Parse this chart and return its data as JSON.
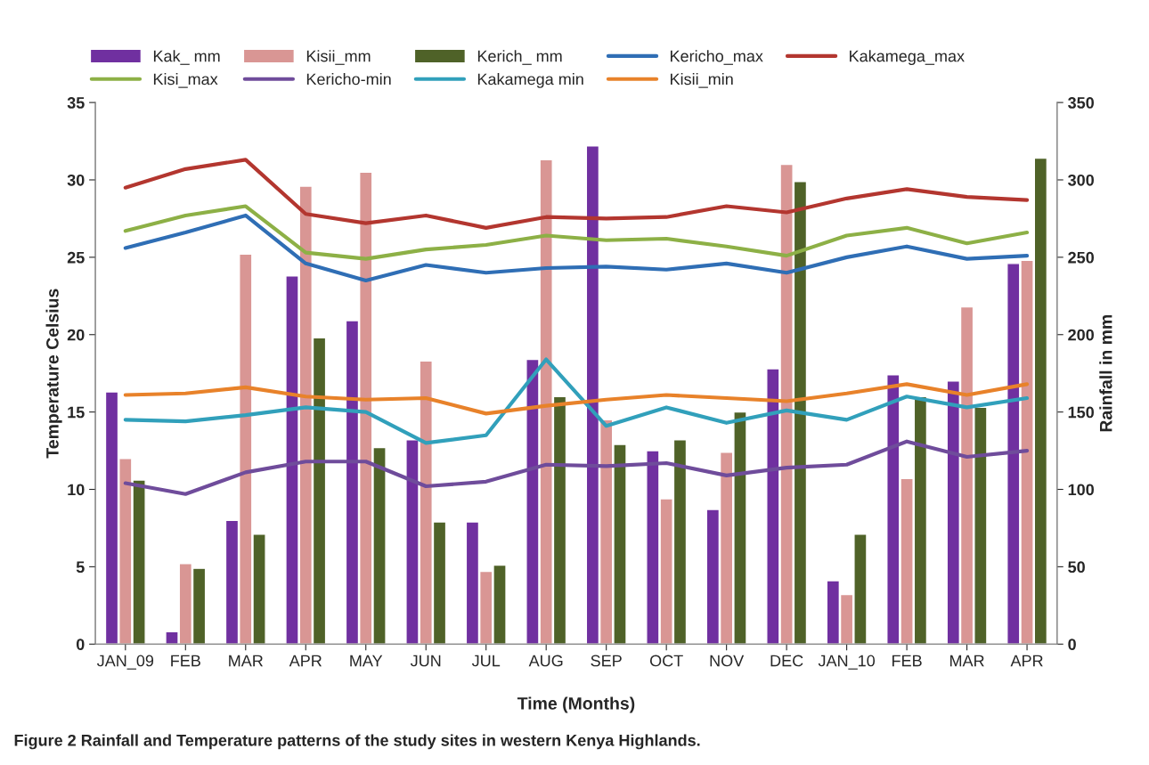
{
  "chart_data": {
    "type": "bar",
    "title": "Figure 2 Rainfall and Temperature patterns of the study sites in western Kenya Highlands.",
    "xlabel": "Time (Months)",
    "ylabel": "Temperature Celsius",
    "y2label": "Rainfall in mm",
    "categories": [
      "JAN_09",
      "FEB",
      "MAR",
      "APR",
      "MAY",
      "JUN",
      "JUL",
      "AUG",
      "SEP",
      "OCT",
      "NOV",
      "DEC",
      "JAN_10",
      "FEB",
      "MAR",
      "APR"
    ],
    "ylim": [
      0,
      35
    ],
    "yticks": [
      0,
      5,
      10,
      15,
      20,
      25,
      30,
      35
    ],
    "y2lim": [
      0,
      350
    ],
    "y2ticks": [
      0,
      50,
      100,
      150,
      200,
      250,
      300,
      350
    ],
    "grid": false,
    "legend": "top",
    "marker": "none",
    "line_style": "solid",
    "series": [
      {
        "name": "Kak_ mm",
        "axis": "y2",
        "color": "#7030a0",
        "values": [
          163,
          8,
          80,
          238,
          209,
          132,
          79,
          184,
          322,
          125,
          87,
          178,
          41,
          174,
          170,
          246
        ]
      },
      {
        "name": "Kisii_mm",
        "axis": "y2",
        "color": "#d99694",
        "values": [
          120,
          52,
          252,
          296,
          305,
          183,
          47,
          313,
          145,
          94,
          124,
          310,
          32,
          107,
          218,
          248
        ]
      },
      {
        "name": "Kerich_ mm",
        "axis": "y2",
        "color": "#4f6228",
        "values": [
          106,
          49,
          71,
          198,
          127,
          79,
          51,
          160,
          129,
          132,
          150,
          299,
          71,
          160,
          153,
          314
        ]
      },
      {
        "name": "Kericho_max",
        "type": "line",
        "color": "#2f6eb5",
        "values": [
          25.6,
          26.6,
          27.7,
          24.6,
          23.5,
          24.5,
          24.0,
          24.3,
          24.4,
          24.2,
          24.6,
          24.0,
          25.0,
          25.7,
          24.9,
          25.1
        ]
      },
      {
        "name": "Kakamega_max",
        "type": "line",
        "color": "#b3362f",
        "values": [
          29.5,
          30.7,
          31.3,
          27.8,
          27.2,
          27.7,
          26.9,
          27.6,
          27.5,
          27.6,
          28.3,
          27.9,
          28.8,
          29.4,
          28.9,
          28.7
        ]
      },
      {
        "name": "Kisi_max",
        "type": "line",
        "color": "#8db046",
        "values": [
          26.7,
          27.7,
          28.3,
          25.3,
          24.9,
          25.5,
          25.8,
          26.4,
          26.1,
          26.2,
          25.7,
          25.1,
          26.4,
          26.9,
          25.9,
          26.6
        ]
      },
      {
        "name": "Kericho-min",
        "type": "line",
        "color": "#6f4c9b",
        "values": [
          10.4,
          9.7,
          11.1,
          11.8,
          11.8,
          10.2,
          10.5,
          11.6,
          11.5,
          11.7,
          10.9,
          11.4,
          11.6,
          13.1,
          12.1,
          12.5
        ]
      },
      {
        "name": "Kakamega min",
        "type": "line",
        "color": "#31a0bb",
        "values": [
          14.5,
          14.4,
          14.8,
          15.3,
          15.0,
          13.0,
          13.5,
          18.4,
          14.1,
          15.3,
          14.3,
          15.1,
          14.5,
          16.0,
          15.3,
          15.9
        ]
      },
      {
        "name": "Kisii_min",
        "type": "line",
        "color": "#e8822a",
        "values": [
          16.1,
          16.2,
          16.6,
          16.0,
          15.8,
          15.9,
          14.9,
          15.4,
          15.8,
          16.1,
          15.9,
          15.7,
          16.2,
          16.8,
          16.1,
          16.8
        ]
      }
    ]
  }
}
